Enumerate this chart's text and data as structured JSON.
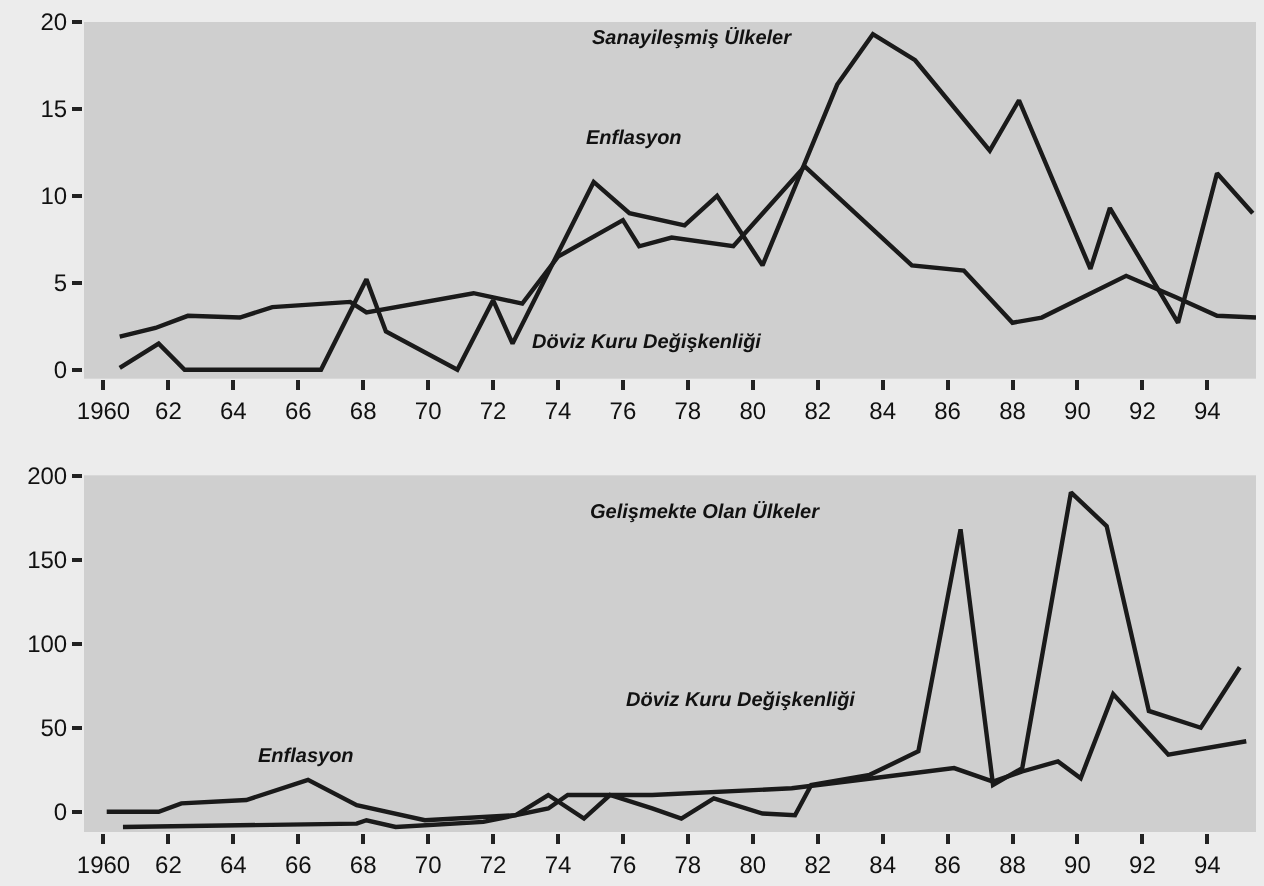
{
  "chart_data": [
    {
      "type": "line",
      "xlim": [
        1959.4,
        1995.5
      ],
      "ylim": [
        -0.5,
        20
      ],
      "xticks": [
        {
          "value": 1960,
          "label": "1960"
        },
        {
          "value": 1962,
          "label": "62"
        },
        {
          "value": 1964,
          "label": "64"
        },
        {
          "value": 1966,
          "label": "66"
        },
        {
          "value": 1968,
          "label": "68"
        },
        {
          "value": 1970,
          "label": "70"
        },
        {
          "value": 1972,
          "label": "72"
        },
        {
          "value": 1974,
          "label": "74"
        },
        {
          "value": 1976,
          "label": "76"
        },
        {
          "value": 1978,
          "label": "78"
        },
        {
          "value": 1980,
          "label": "80"
        },
        {
          "value": 1982,
          "label": "82"
        },
        {
          "value": 1984,
          "label": "84"
        },
        {
          "value": 1986,
          "label": "86"
        },
        {
          "value": 1988,
          "label": "88"
        },
        {
          "value": 1990,
          "label": "90"
        },
        {
          "value": 1992,
          "label": "92"
        },
        {
          "value": 1994,
          "label": "94"
        }
      ],
      "yticks": [
        0,
        5,
        10,
        15,
        20
      ],
      "series": [
        {
          "color": "#1a1a1a",
          "x": [
            1960.5,
            1961.7,
            1962.5,
            1966.7,
            1968.1,
            1968.7,
            1970.9,
            1972.0,
            1972.6,
            1975.1,
            1976.2,
            1977.9,
            1978.9,
            1980.3,
            1982.6,
            1983.7,
            1985.0,
            1987.3,
            1988.2,
            1990.4,
            1991.0,
            1993.1,
            1994.3,
            1995.4
          ],
          "values": [
            0.1,
            1.5,
            0,
            0,
            5.2,
            2.2,
            0,
            4.0,
            1.5,
            10.8,
            9.0,
            8.3,
            10.0,
            6.0,
            16.4,
            19.3,
            17.8,
            12.6,
            15.5,
            5.8,
            9.3,
            2.7,
            11.3,
            9.0
          ]
        },
        {
          "color": "#1a1a1a",
          "x": [
            1960.5,
            1961.6,
            1962.6,
            1964.2,
            1965.2,
            1967.6,
            1968.1,
            1971.4,
            1972.9,
            1974.0,
            1976.0,
            1976.5,
            1977.5,
            1979.4,
            1981.6,
            1984.9,
            1986.5,
            1988.0,
            1988.9,
            1991.5,
            1993.0,
            1994.3,
            1995.5
          ],
          "values": [
            1.9,
            2.4,
            3.1,
            3.0,
            3.6,
            3.9,
            3.3,
            4.4,
            3.8,
            6.5,
            8.6,
            7.1,
            7.6,
            7.1,
            11.7,
            6.0,
            5.7,
            2.7,
            3.0,
            5.4,
            4.2,
            3.1,
            3.0
          ]
        }
      ],
      "annotations": [
        "Sanayileşmiş Ülkeler",
        "Enflasyon",
        "Döviz Kuru Değişkenliği"
      ]
    },
    {
      "type": "line",
      "xlim": [
        1959.4,
        1995.5
      ],
      "ylim": [
        -12,
        200
      ],
      "xticks": [
        {
          "value": 1960,
          "label": "1960"
        },
        {
          "value": 1962,
          "label": "62"
        },
        {
          "value": 1964,
          "label": "64"
        },
        {
          "value": 1966,
          "label": "66"
        },
        {
          "value": 1968,
          "label": "68"
        },
        {
          "value": 1970,
          "label": "70"
        },
        {
          "value": 1972,
          "label": "72"
        },
        {
          "value": 1974,
          "label": "74"
        },
        {
          "value": 1976,
          "label": "76"
        },
        {
          "value": 1978,
          "label": "78"
        },
        {
          "value": 1980,
          "label": "80"
        },
        {
          "value": 1982,
          "label": "82"
        },
        {
          "value": 1984,
          "label": "84"
        },
        {
          "value": 1986,
          "label": "86"
        },
        {
          "value": 1988,
          "label": "88"
        },
        {
          "value": 1990,
          "label": "90"
        },
        {
          "value": 1992,
          "label": "92"
        },
        {
          "value": 1994,
          "label": "94"
        }
      ],
      "yticks": [
        0,
        50,
        100,
        150,
        200
      ],
      "series": [
        {
          "color": "#1a1a1a",
          "x": [
            1960.1,
            1961.7,
            1962.4,
            1964.4,
            1966.3,
            1967.8,
            1969.9,
            1972.7,
            1973.7,
            1974.8,
            1975.6,
            1976.9,
            1977.8,
            1978.8,
            1980.3,
            1981.3,
            1981.8,
            1983.6,
            1985.1,
            1986.4,
            1987.4,
            1988.3,
            1989.8,
            1990.9,
            1992.2,
            1993.8,
            1995.0
          ],
          "values": [
            0,
            0,
            5,
            7,
            19,
            4,
            -5,
            -2,
            10,
            -4,
            10,
            2,
            -4,
            8,
            -1,
            -2,
            16,
            22,
            36,
            168,
            16,
            26,
            190,
            170,
            60,
            50,
            86
          ]
        },
        {
          "color": "#1a1a1a",
          "x": [
            1960.6,
            1967.8,
            1968.1,
            1969.0,
            1971.7,
            1973.7,
            1974.3,
            1976.9,
            1981.2,
            1983.7,
            1986.2,
            1987.4,
            1988.3,
            1989.4,
            1990.1,
            1991.1,
            1992.8,
            1995.2
          ],
          "values": [
            -9,
            -7,
            -5,
            -9,
            -6,
            2,
            10,
            10,
            14,
            20,
            26,
            18,
            24,
            30,
            20,
            70,
            34,
            42
          ]
        }
      ],
      "annotations": [
        "Gelişmekte Olan Ülkeler",
        "Enflasyon",
        "Döviz Kuru Değişkenliği"
      ]
    }
  ]
}
